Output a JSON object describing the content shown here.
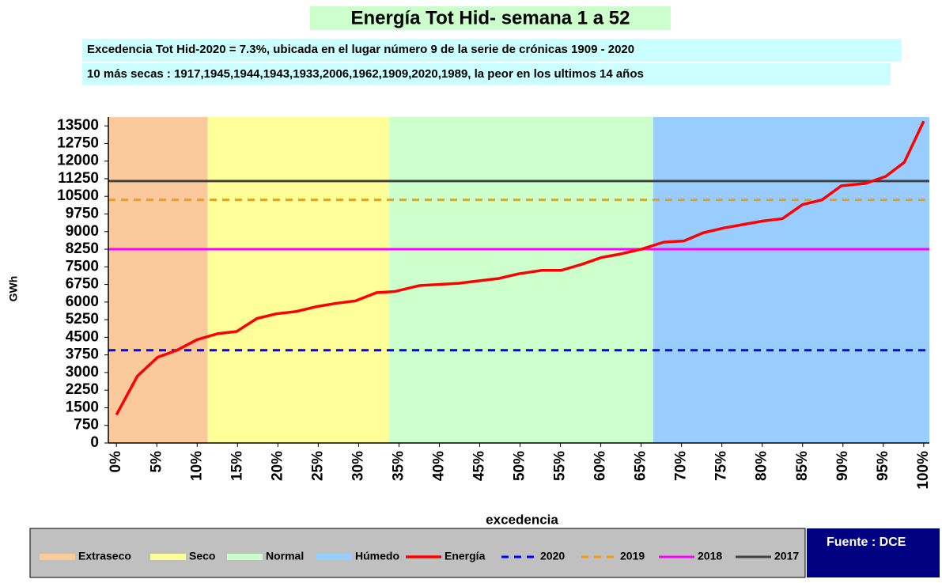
{
  "chart_data": {
    "type": "line",
    "title": "Energía Tot Hid- semana 1 a 52",
    "subtitles": [
      "Excedencia  Tot Hid-2020 = 7.3%, ubicada en el lugar número 9 de la serie de crónicas 1909 - 2020",
      "10 más secas : 1917,1945,1944,1943,1933,2006,1962,1909,2020,1989, la peor en los ultimos 14 años"
    ],
    "x_label": "excedencia",
    "y_label": "GWh",
    "source": "Fuente : DCE",
    "xlim": [
      -1,
      100.7
    ],
    "ylim": [
      0,
      13875
    ],
    "yticks": [
      0,
      750,
      1500,
      2250,
      3000,
      3750,
      4500,
      5250,
      6000,
      6750,
      7500,
      8250,
      9000,
      9750,
      10500,
      11250,
      12000,
      12750,
      13500
    ],
    "xticks": [
      {
        "value": 0,
        "label": "0%"
      },
      {
        "value": 5,
        "label": "5%"
      },
      {
        "value": 10,
        "label": "10%"
      },
      {
        "value": 15,
        "label": "15%"
      },
      {
        "value": 20,
        "label": "20%"
      },
      {
        "value": 25,
        "label": "25%"
      },
      {
        "value": 30,
        "label": "30%"
      },
      {
        "value": 35,
        "label": "35%"
      },
      {
        "value": 40,
        "label": "40%"
      },
      {
        "value": 45,
        "label": "45%"
      },
      {
        "value": 50,
        "label": "50%"
      },
      {
        "value": 55,
        "label": "55%"
      },
      {
        "value": 60,
        "label": "60%"
      },
      {
        "value": 65,
        "label": "65%"
      },
      {
        "value": 70,
        "label": "70%"
      },
      {
        "value": 75,
        "label": "75%"
      },
      {
        "value": 80,
        "label": "80%"
      },
      {
        "value": 85,
        "label": "85%"
      },
      {
        "value": 90,
        "label": "90%"
      },
      {
        "value": 95,
        "label": "95%"
      },
      {
        "value": 100,
        "label": "100%"
      }
    ],
    "bands": [
      {
        "name": "Extraseco",
        "color": "#fac99c",
        "from": -1,
        "to": 11.3
      },
      {
        "name": "Seco",
        "color": "#ffff99",
        "from": 11.3,
        "to": 33.8
      },
      {
        "name": "Normal",
        "color": "#ccffcc",
        "from": 33.8,
        "to": 66.5
      },
      {
        "name": "Húmedo",
        "color": "#99ccff",
        "from": 66.5,
        "to": 100.7
      }
    ],
    "x": [
      0,
      2.6,
      5.1,
      7.5,
      10,
      12.5,
      14.9,
      17.4,
      19.8,
      22.3,
      24.7,
      27.3,
      29.6,
      32.2,
      34.5,
      37.5,
      39.9,
      42.4,
      44.8,
      47.3,
      49.8,
      52.7,
      55.1,
      57.6,
      60.1,
      62.5,
      65,
      67.8,
      70.3,
      72.7,
      75.2,
      77.6,
      80.1,
      82.5,
      85,
      87.4,
      89.8,
      92.8,
      95.3,
      97.6,
      100
    ],
    "series": [
      {
        "name": "Energía",
        "color": "#ff0000",
        "values": [
          1200,
          2850,
          3650,
          3950,
          4400,
          4650,
          4750,
          5300,
          5500,
          5600,
          5800,
          5950,
          6050,
          6400,
          6450,
          6700,
          6750,
          6800,
          6900,
          7000,
          7200,
          7350,
          7350,
          7600,
          7900,
          8050,
          8250,
          8550,
          8600,
          8950,
          9150,
          9300,
          9450,
          9550,
          10150,
          10350,
          10950,
          11050,
          11350,
          11950,
          13700
        ]
      }
    ],
    "reference_lines": [
      {
        "name": "2020",
        "color": "#0000ff",
        "dashed": true,
        "value": 3950
      },
      {
        "name": "2019",
        "color": "#ff9900",
        "dashed": true,
        "value": 10350
      },
      {
        "name": "2018",
        "color": "#ff00ff",
        "dashed": false,
        "value": 8250
      },
      {
        "name": "2017",
        "color": "#404040",
        "dashed": false,
        "value": 11150
      }
    ]
  }
}
